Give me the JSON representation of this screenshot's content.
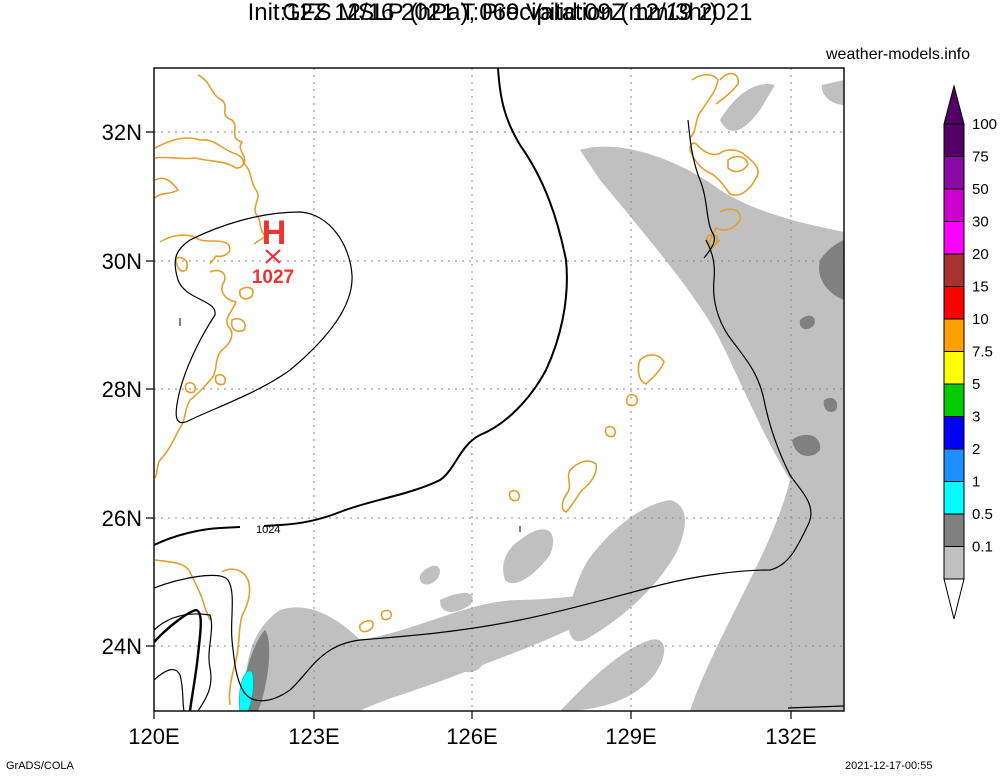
{
  "header": {
    "title_line1": "GFS MSLP (hPa), Precipitation (mm/3hr)",
    "title_line2": "Init:12Z 12/16 2021 T:069 Valid:09Z 12/19 2021",
    "site": "weather-models.info"
  },
  "map": {
    "lon_range": [
      120,
      133
    ],
    "lat_range": [
      23,
      33
    ],
    "lon_ticks": [
      "120E",
      "123E",
      "126E",
      "129E",
      "132E"
    ],
    "lat_ticks": [
      "24N",
      "26N",
      "28N",
      "30N",
      "32N"
    ],
    "high_pressure": {
      "symbol": "H",
      "value": "1027",
      "lon": 122.2,
      "lat": 30.05
    },
    "isobar_label": "1024",
    "colors": {
      "coast": "#e0a030",
      "isobar": "#000000",
      "high": "#ee3333",
      "grid": "#888888"
    }
  },
  "colorbar": {
    "levels": [
      "100",
      "75",
      "50",
      "30",
      "20",
      "15",
      "10",
      "7.5",
      "5",
      "3",
      "2",
      "1",
      "0.5",
      "0.1"
    ],
    "colors": [
      "#520066",
      "#8a0aa8",
      "#cc00cc",
      "#ff00ff",
      "#a83232",
      "#ff0000",
      "#ffa000",
      "#ffff00",
      "#00cc00",
      "#0000ff",
      "#1e90ff",
      "#00ffff",
      "#808080",
      "#c0c0c0"
    ]
  },
  "footer": {
    "left": "GrADS/COLA",
    "right": "2021-12-17-00:55"
  }
}
